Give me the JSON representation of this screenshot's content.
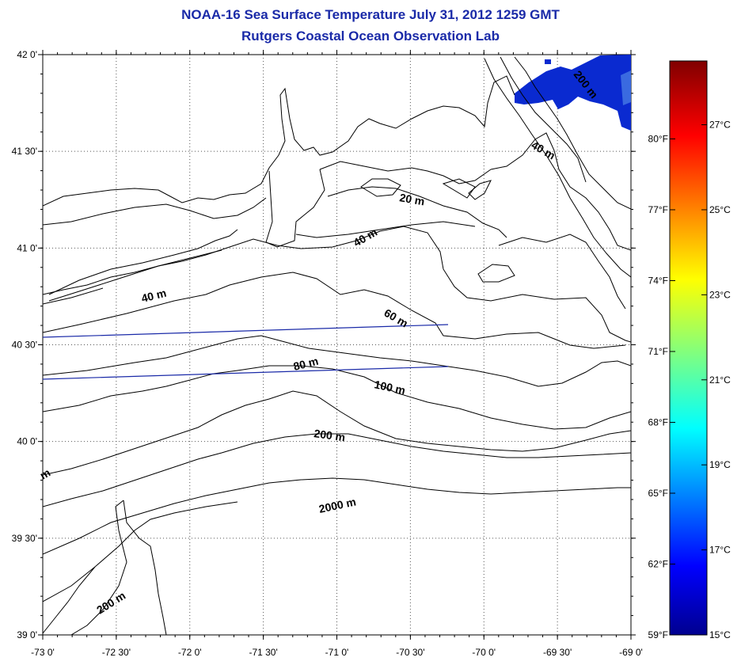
{
  "title": "NOAA-16 Sea Surface Temperature July 31, 2012 1259 GMT",
  "subtitle": "Rutgers Coastal Ocean Observation Lab",
  "map": {
    "lon_labels": [
      "-73 0'",
      "-72 30'",
      "-72 0'",
      "-71 30'",
      "-71 0'",
      "-70 30'",
      "-70 0'",
      "-69 30'",
      "-69 0'"
    ],
    "lat_labels": [
      "42 0'",
      "41 30'",
      "41 0'",
      "40 30'",
      "40 0'",
      "39 30'",
      "39 0'"
    ],
    "lon_range": [
      -73,
      -69
    ],
    "lat_range": [
      39,
      42
    ],
    "grid": "dotted",
    "land_color": "#ffffff",
    "sst_patch_color": "#0a2ad0",
    "contour_labels": [
      {
        "text": "200 m"
      },
      {
        "text": "40 m"
      },
      {
        "text": "20 m"
      },
      {
        "text": "40 m"
      },
      {
        "text": "40 m"
      },
      {
        "text": "60 m"
      },
      {
        "text": "80 m"
      },
      {
        "text": "100 m"
      },
      {
        "text": "200 m"
      },
      {
        "text": "2000 m"
      },
      {
        "text": "200 m"
      },
      {
        "text": "m"
      }
    ]
  },
  "colorbar": {
    "range_c": [
      15,
      28.5
    ],
    "celsius_labels": [
      "27°C",
      "25°C",
      "23°C",
      "21°C",
      "19°C",
      "17°C",
      "15°C"
    ],
    "fahrenheit_labels": [
      "80°F",
      "77°F",
      "74°F",
      "71°F",
      "68°F",
      "65°F",
      "62°F",
      "59°F"
    ]
  }
}
